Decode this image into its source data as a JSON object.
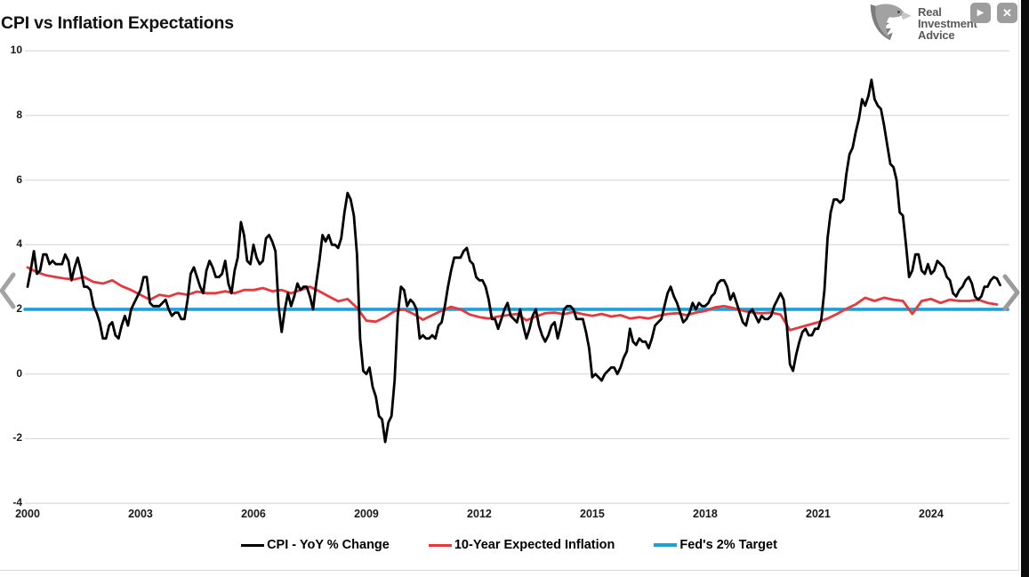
{
  "title": "CPI vs Inflation Expectations",
  "logo": {
    "line1": "Real",
    "line2": "Investment",
    "line3": "Advice"
  },
  "icons": {
    "play": "▶",
    "close": "✕"
  },
  "colors": {
    "cpi_line": "#000000",
    "expected_inflation_line": "#e8383d",
    "fed_target_line": "#1da0d8",
    "gridline": "#d9d9d9",
    "nav_chevron": "#a3a3a3",
    "logo_text": "#58595b"
  },
  "chart_data": {
    "type": "line",
    "title": "CPI vs Inflation Expectations",
    "xlabel": "",
    "ylabel": "",
    "grid": "horizontal",
    "legend_position": "bottom",
    "x_axis": {
      "ticks": [
        2000,
        2003,
        2006,
        2009,
        2012,
        2015,
        2018,
        2021,
        2024
      ],
      "range": [
        2000,
        2026.1
      ]
    },
    "y_axis": {
      "ticks": [
        10,
        8,
        6,
        4,
        2,
        0,
        -2,
        -4
      ],
      "range": [
        -4,
        10.7
      ]
    },
    "series": [
      {
        "name": "CPI - YoY % Change",
        "color": "#000000",
        "stroke_width": 2.8,
        "start_year": 2000,
        "points_per_year": 12,
        "values": [
          2.7,
          3.2,
          3.8,
          3.1,
          3.2,
          3.7,
          3.7,
          3.4,
          3.5,
          3.4,
          3.4,
          3.4,
          3.7,
          3.5,
          2.9,
          3.3,
          3.6,
          3.2,
          2.7,
          2.7,
          2.6,
          2.1,
          1.9,
          1.6,
          1.1,
          1.1,
          1.5,
          1.6,
          1.2,
          1.1,
          1.5,
          1.8,
          1.5,
          2.0,
          2.2,
          2.4,
          2.6,
          3.0,
          3.0,
          2.2,
          2.1,
          2.1,
          2.1,
          2.2,
          2.3,
          2.0,
          1.8,
          1.9,
          1.9,
          1.7,
          1.7,
          2.3,
          3.1,
          3.3,
          3.0,
          2.7,
          2.5,
          3.2,
          3.5,
          3.3,
          3.0,
          3.0,
          3.1,
          3.5,
          2.8,
          2.5,
          3.2,
          3.6,
          4.7,
          4.3,
          3.5,
          3.4,
          4.0,
          3.6,
          3.4,
          3.5,
          4.2,
          4.3,
          4.1,
          3.8,
          2.1,
          1.3,
          2.0,
          2.5,
          2.1,
          2.4,
          2.8,
          2.6,
          2.7,
          2.7,
          2.4,
          2.0,
          2.8,
          3.5,
          4.3,
          4.1,
          4.3,
          4.0,
          4.0,
          3.9,
          4.2,
          5.0,
          5.6,
          5.4,
          4.9,
          3.7,
          1.1,
          0.1,
          0.0,
          0.2,
          -0.4,
          -0.7,
          -1.3,
          -1.4,
          -2.1,
          -1.5,
          -1.3,
          -0.2,
          1.8,
          2.7,
          2.6,
          2.1,
          2.3,
          2.2,
          2.0,
          1.1,
          1.2,
          1.1,
          1.1,
          1.2,
          1.1,
          1.5,
          1.6,
          2.1,
          2.7,
          3.2,
          3.6,
          3.6,
          3.6,
          3.8,
          3.9,
          3.5,
          3.4,
          3.0,
          2.9,
          2.9,
          2.7,
          2.3,
          1.7,
          1.7,
          1.4,
          1.7,
          2.0,
          2.2,
          1.8,
          1.7,
          1.6,
          2.0,
          1.5,
          1.1,
          1.4,
          1.8,
          2.0,
          1.5,
          1.2,
          1.0,
          1.2,
          1.5,
          1.6,
          1.1,
          1.5,
          2.0,
          2.1,
          2.1,
          2.0,
          1.7,
          1.7,
          1.7,
          1.3,
          0.8,
          -0.1,
          0.0,
          -0.1,
          -0.2,
          0.0,
          0.1,
          0.2,
          0.2,
          0.0,
          0.2,
          0.5,
          0.7,
          1.4,
          1.0,
          0.9,
          1.1,
          1.0,
          1.0,
          0.8,
          1.1,
          1.5,
          1.6,
          1.7,
          2.1,
          2.5,
          2.7,
          2.4,
          2.2,
          1.9,
          1.6,
          1.7,
          1.9,
          2.2,
          2.0,
          2.2,
          2.1,
          2.1,
          2.2,
          2.4,
          2.5,
          2.8,
          2.9,
          2.9,
          2.7,
          2.3,
          2.5,
          2.2,
          1.9,
          1.6,
          1.5,
          1.9,
          2.0,
          1.8,
          1.6,
          1.8,
          1.7,
          1.7,
          1.8,
          2.1,
          2.3,
          2.5,
          2.3,
          1.5,
          0.3,
          0.1,
          0.6,
          1.0,
          1.3,
          1.4,
          1.2,
          1.2,
          1.4,
          1.4,
          1.7,
          2.6,
          4.2,
          5.0,
          5.4,
          5.4,
          5.3,
          5.4,
          6.2,
          6.8,
          7.0,
          7.5,
          7.9,
          8.5,
          8.3,
          8.6,
          9.1,
          8.5,
          8.3,
          8.2,
          7.7,
          7.1,
          6.5,
          6.4,
          6.0,
          5.0,
          4.9,
          4.0,
          3.0,
          3.2,
          3.7,
          3.7,
          3.2,
          3.1,
          3.4,
          3.1,
          3.2,
          3.5,
          3.4,
          3.3,
          3.0,
          2.9,
          2.5,
          2.4,
          2.6,
          2.7,
          2.9,
          3.0,
          2.8,
          2.4,
          2.3,
          2.4,
          2.7,
          2.7,
          2.9,
          3.0,
          2.95,
          2.75
        ]
      },
      {
        "name": "10-Year Expected Inflation",
        "color": "#e8383d",
        "stroke_width": 2.8,
        "start_year": 2000,
        "points_per_year": 4,
        "values": [
          3.3,
          3.15,
          3.05,
          3.0,
          2.95,
          2.93,
          3.0,
          2.85,
          2.8,
          2.9,
          2.72,
          2.6,
          2.45,
          2.3,
          2.45,
          2.4,
          2.5,
          2.45,
          2.55,
          2.5,
          2.5,
          2.56,
          2.5,
          2.6,
          2.6,
          2.66,
          2.56,
          2.6,
          2.5,
          2.6,
          2.7,
          2.56,
          2.4,
          2.25,
          2.32,
          2.05,
          1.65,
          1.62,
          1.76,
          1.95,
          2.0,
          1.86,
          1.68,
          1.82,
          1.96,
          2.08,
          2.0,
          1.84,
          1.76,
          1.72,
          1.78,
          1.82,
          1.86,
          1.66,
          1.78,
          1.88,
          1.9,
          1.85,
          1.92,
          1.85,
          1.8,
          1.86,
          1.78,
          1.82,
          1.72,
          1.76,
          1.72,
          1.8,
          1.86,
          1.88,
          1.82,
          1.9,
          1.95,
          2.06,
          2.1,
          2.04,
          1.96,
          1.9,
          1.88,
          1.9,
          1.84,
          1.36,
          1.44,
          1.52,
          1.6,
          1.72,
          1.86,
          2.02,
          2.16,
          2.36,
          2.26,
          2.36,
          2.3,
          2.26,
          1.86,
          2.26,
          2.32,
          2.2,
          2.3,
          2.26,
          2.26,
          2.3,
          2.2,
          2.15
        ]
      },
      {
        "name": "Fed's 2% Target",
        "color": "#1da0d8",
        "stroke_width": 3.6,
        "constant": 2
      }
    ]
  }
}
